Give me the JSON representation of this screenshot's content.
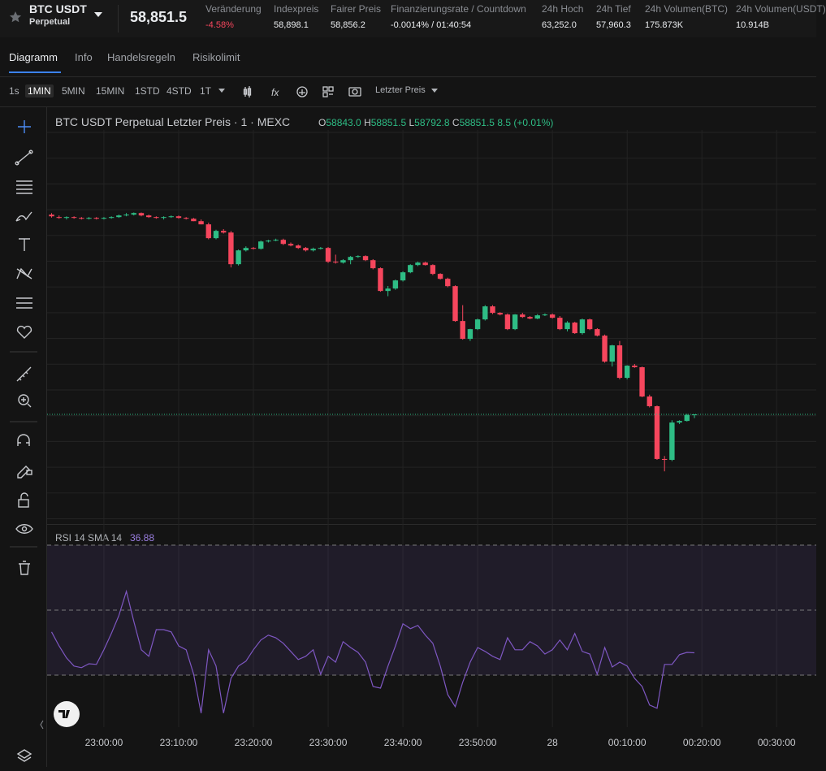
{
  "header": {
    "symbol": "BTC USDT",
    "contract": "Perpetual",
    "price": "58,851.5",
    "stats": [
      {
        "label": "Veränderung",
        "value": "-4.58%"
      },
      {
        "label": "Indexpreis",
        "value": "58,898.1"
      },
      {
        "label": "Fairer Preis",
        "value": "58,856.2"
      },
      {
        "label": "Finanzierungsrate / Countdown",
        "value": "-0.0014% / 01:40:54"
      },
      {
        "label": "24h Hoch",
        "value": "63,252.0"
      },
      {
        "label": "24h Tief",
        "value": "57,960.3"
      },
      {
        "label": "24h Volumen(BTC)",
        "value": "175.873K"
      },
      {
        "label": "24h Volumen(USDT)",
        "value": "10.914B"
      }
    ]
  },
  "tabs": [
    "Diagramm",
    "Info",
    "Handelsregeln",
    "Risikolimit"
  ],
  "intervals": [
    "1s",
    "1MIN",
    "5MIN",
    "15MIN",
    "1STD",
    "4STD",
    "1T"
  ],
  "price_type": "Letzter Preis",
  "chart_data": [
    {
      "type": "candlestick",
      "title": "BTC USDT Perpetual Letzter Preis · 1 · MEXC",
      "ohlc_legend": [
        {
          "label": "O",
          "value": "58843.0"
        },
        {
          "label": "H",
          "value": "58851.5"
        },
        {
          "label": "L",
          "value": "58792.8"
        },
        {
          "label": "C",
          "value": "58851.5"
        }
      ],
      "change": "8.5 (+0.01%)",
      "up_color": "#2ebd85",
      "down_color": "#f6465d",
      "ylim": [
        57200,
        63300
      ],
      "xlim": [
        -0.6,
        102.3
      ],
      "xticks": [
        {
          "value": 7,
          "label": "23:00:00"
        },
        {
          "value": 17,
          "label": "23:10:00"
        },
        {
          "value": 27,
          "label": "23:20:00"
        },
        {
          "value": 37,
          "label": "23:30:00"
        },
        {
          "value": 47,
          "label": "23:40:00"
        },
        {
          "value": 57,
          "label": "23:50:00"
        },
        {
          "value": 67,
          "label": "28"
        },
        {
          "value": 77,
          "label": "00:10:00"
        },
        {
          "value": 87,
          "label": "00:20:00"
        },
        {
          "value": 97,
          "label": "00:30:00"
        }
      ],
      "candles": [
        [
          61976,
          62000,
          61930,
          61950
        ],
        [
          61938,
          61963,
          61912,
          61925
        ],
        [
          61925,
          61950,
          61900,
          61938
        ],
        [
          61938,
          61950,
          61912,
          61925
        ],
        [
          61925,
          61938,
          61900,
          61912
        ],
        [
          61912,
          61938,
          61900,
          61925
        ],
        [
          61925,
          61938,
          61900,
          61912
        ],
        [
          61912,
          61938,
          61900,
          61925
        ],
        [
          61925,
          61950,
          61912,
          61938
        ],
        [
          61938,
          61976,
          61925,
          61963
        ],
        [
          61963,
          62001,
          61950,
          61976
        ],
        [
          61976,
          62010,
          61963,
          62001
        ],
        [
          62001,
          62010,
          61950,
          61963
        ],
        [
          61963,
          61976,
          61925,
          61938
        ],
        [
          61938,
          61950,
          61912,
          61925
        ],
        [
          61925,
          61950,
          61900,
          61938
        ],
        [
          61938,
          61963,
          61925,
          61950
        ],
        [
          61950,
          61963,
          61912,
          61925
        ],
        [
          61925,
          61938,
          61900,
          61912
        ],
        [
          61912,
          61925,
          61874,
          61874
        ],
        [
          61874,
          61900,
          61824,
          61824
        ],
        [
          61824,
          61850,
          61590,
          61608
        ],
        [
          61608,
          61740,
          61590,
          61722
        ],
        [
          61722,
          61750,
          61680,
          61696
        ],
        [
          61696,
          61720,
          61150,
          61201
        ],
        [
          61201,
          61430,
          61180,
          61417
        ],
        [
          61417,
          61480,
          61400,
          61455
        ],
        [
          61455,
          61470,
          61430,
          61442
        ],
        [
          61442,
          61570,
          61430,
          61556
        ],
        [
          61556,
          61582,
          61540,
          61570
        ],
        [
          61570,
          61600,
          61560,
          61582
        ],
        [
          61582,
          61600,
          61500,
          61518
        ],
        [
          61518,
          61540,
          61480,
          61493
        ],
        [
          61493,
          61510,
          61440,
          61455
        ],
        [
          61455,
          61470,
          61400,
          61417
        ],
        [
          61417,
          61460,
          61400,
          61442
        ],
        [
          61442,
          61470,
          61430,
          61455
        ],
        [
          61455,
          61470,
          61220,
          61239
        ],
        [
          61239,
          61350,
          61210,
          61226
        ],
        [
          61226,
          61280,
          61210,
          61264
        ],
        [
          61264,
          61330,
          61200,
          61315
        ],
        [
          61315,
          61340,
          61300,
          61328
        ],
        [
          61328,
          61340,
          61250,
          61264
        ],
        [
          61264,
          61280,
          61120,
          61138
        ],
        [
          61138,
          61150,
          60770,
          60782
        ],
        [
          60782,
          60860,
          60700,
          60820
        ],
        [
          60820,
          60960,
          60800,
          60947
        ],
        [
          60947,
          61090,
          60930,
          61074
        ],
        [
          61074,
          61200,
          61060,
          61188
        ],
        [
          61188,
          61240,
          61170,
          61226
        ],
        [
          61226,
          61240,
          61180,
          61188
        ],
        [
          61188,
          61200,
          61030,
          61049
        ],
        [
          61049,
          61060,
          60960,
          60972
        ],
        [
          60972,
          60990,
          60840,
          60858
        ],
        [
          60858,
          60870,
          60300,
          60312
        ],
        [
          60312,
          60560,
          60020,
          60033
        ],
        [
          60033,
          60190,
          60000,
          60185
        ],
        [
          60185,
          60350,
          60170,
          60337
        ],
        [
          60337,
          60560,
          60320,
          60541
        ],
        [
          60541,
          60560,
          60420,
          60439
        ],
        [
          60439,
          60450,
          60400,
          60414
        ],
        [
          60414,
          60430,
          60170,
          60185
        ],
        [
          60185,
          60420,
          60170,
          60414
        ],
        [
          60414,
          60440,
          60360,
          60375
        ],
        [
          60375,
          60390,
          60340,
          60350
        ],
        [
          60350,
          60420,
          60340,
          60401
        ],
        [
          60401,
          60430,
          60390,
          60414
        ],
        [
          60414,
          60430,
          60350,
          60363
        ],
        [
          60363,
          60390,
          60170,
          60185
        ],
        [
          60185,
          60310,
          60150,
          60287
        ],
        [
          60287,
          60300,
          60110,
          60122
        ],
        [
          60122,
          60350,
          60100,
          60337
        ],
        [
          60337,
          60350,
          60170,
          60185
        ],
        [
          60185,
          60200,
          60070,
          60083
        ],
        [
          60083,
          60100,
          59660,
          59677
        ],
        [
          59677,
          59940,
          59600,
          59931
        ],
        [
          59931,
          60000,
          59400,
          59423
        ],
        [
          59423,
          59620,
          59400,
          59614
        ],
        [
          59614,
          59640,
          59580,
          59589
        ],
        [
          59589,
          59600,
          59120,
          59131
        ],
        [
          59131,
          59160,
          58960,
          58979
        ],
        [
          58979,
          58990,
          58140,
          58154
        ],
        [
          58154,
          58200,
          57960.3,
          58140
        ],
        [
          58140,
          58760,
          58120,
          58724
        ],
        [
          58724,
          58760,
          58700,
          58749
        ],
        [
          58749,
          58860,
          58740,
          58843
        ],
        [
          58843,
          58851.5,
          58792.8,
          58851.5
        ]
      ]
    },
    {
      "type": "line",
      "title": "RSI 14 SMA 14",
      "current": 36.88,
      "color": "#7e57c2",
      "ylim": [
        14,
        75
      ],
      "levels": [
        70,
        50,
        30
      ],
      "values": [
        43.3,
        39,
        35.3,
        32.8,
        32.3,
        33.5,
        33.3,
        37.8,
        42.8,
        48.3,
        55.8,
        46.5,
        37.8,
        35.8,
        44,
        44,
        43.3,
        39,
        37.8,
        30.3,
        18.3,
        37.8,
        32.8,
        18.3,
        29,
        32.8,
        34.3,
        37.8,
        40.8,
        42.3,
        41.5,
        39.8,
        37.3,
        34.8,
        35.8,
        37.8,
        30.3,
        35.8,
        34,
        40.3,
        38.5,
        37,
        34,
        26.5,
        26,
        32.8,
        39,
        45.8,
        44.3,
        45.3,
        42.3,
        39.8,
        32.8,
        24,
        20.3,
        27.8,
        34,
        38.5,
        37.3,
        35.8,
        34.8,
        41.5,
        37.8,
        37.8,
        40.3,
        39,
        36.5,
        37.8,
        40.8,
        37.8,
        42.8,
        37.3,
        36.5,
        30.3,
        38.5,
        32.5,
        34,
        32.8,
        29,
        26.5,
        20.8,
        19.8,
        33.3,
        33.3,
        36.3,
        37,
        36.88
      ]
    }
  ]
}
